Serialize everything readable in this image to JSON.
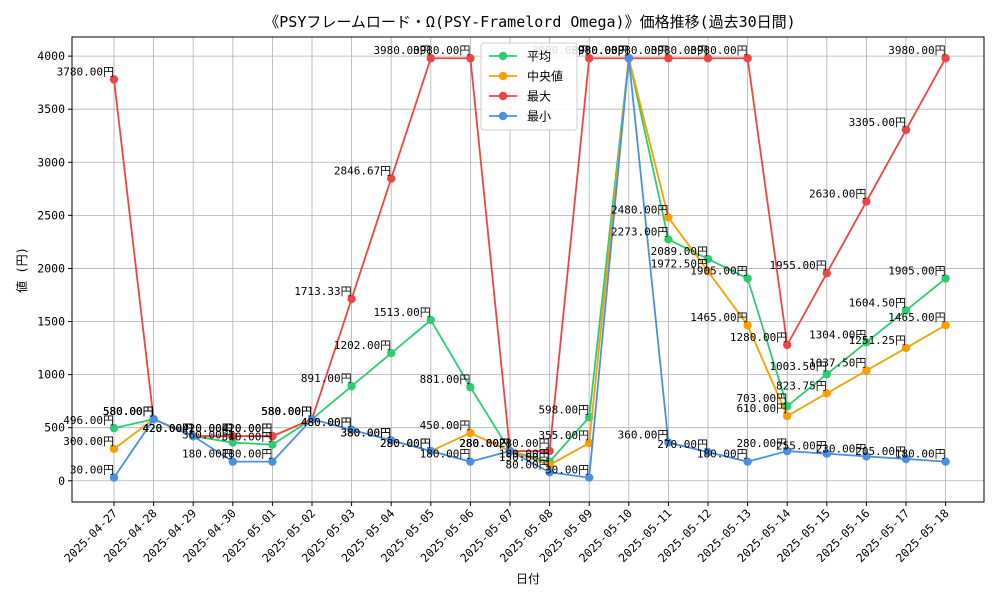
{
  "chart_data": {
    "type": "line",
    "title": "《PSYフレームロード・Ω(PSY-Framelord Omega)》価格推移(過去30日間)",
    "xlabel": "日付",
    "ylabel": "値 (円)",
    "ylim": [
      -200,
      4180
    ],
    "yticks": [
      0,
      500,
      1000,
      1500,
      2000,
      2500,
      3000,
      3500,
      4000
    ],
    "grid": true,
    "legend_position": "top-center",
    "label_suffix": "円",
    "categories": [
      "2025-04-27",
      "2025-04-28",
      "2025-04-29",
      "2025-04-30",
      "2025-05-01",
      "2025-05-02",
      "2025-05-03",
      "2025-05-04",
      "2025-05-05",
      "2025-05-06",
      "2025-05-07",
      "2025-05-08",
      "2025-05-09",
      "2025-05-10",
      "2025-05-11",
      "2025-05-12",
      "2025-05-13",
      "2025-05-14",
      "2025-05-15",
      "2025-05-16",
      "2025-05-17",
      "2025-05-18"
    ],
    "series": [
      {
        "name": "平均",
        "color": "#2ecc71",
        "values": [
          496,
          580,
          420,
          360,
          340,
          580,
          891,
          1202,
          1513,
          881,
          280,
          180,
          598,
          3980,
          2273,
          2089,
          1905,
          703,
          1003.5,
          1304,
          1604.5,
          1905
        ],
        "value_labels": [
          "496.00円",
          "580.00円",
          "420.00円",
          "360.00円",
          "340.00円",
          "580.00円",
          "891.00円",
          "1202.00円",
          "1513.00円",
          "881.00円",
          "280.00円",
          "180.00円",
          "598.00円",
          "3980.00円",
          "2273.00円",
          "2089.00円",
          "1905.00円",
          "703.00円",
          "1003.50円",
          "1304.00円",
          "1604.50円",
          "1905.00円"
        ]
      },
      {
        "name": "中央値",
        "color": "#f5a000",
        "values": [
          300,
          580,
          420,
          420,
          420,
          580,
          480,
          380,
          280,
          450,
          280,
          150,
          355,
          3980,
          2480,
          1972.5,
          1465,
          610,
          823.75,
          1037.5,
          1251.25,
          1465
        ],
        "value_labels": [
          "300.00円",
          "580.00円",
          "420.00円",
          "420.00円",
          "420.00円",
          "580.00円",
          "480.00円",
          "380.00円",
          "280.00円",
          "450.00円",
          "280.00円",
          "150.00円",
          "355.00円",
          "3980.00円",
          "2480.00円",
          "1972.50円",
          "1465.00円",
          "610.00円",
          "823.75円",
          "1037.50円",
          "1251.25円",
          "1465.00円"
        ]
      },
      {
        "name": "最大",
        "color": "#ef4444",
        "values": [
          3780,
          580,
          420,
          420,
          420,
          580,
          1713.33,
          2846.67,
          3980,
          3980,
          280,
          280,
          3980,
          3980,
          3980,
          3980,
          3980,
          1280,
          1955,
          2630,
          3305,
          3980
        ],
        "value_labels": [
          "3780.00円",
          "580.00円",
          "420.00円",
          "420.00円",
          "420.00円",
          "580.00円",
          "1713.33円",
          "2846.67円",
          "3980.00円",
          "3980.00円",
          "280.00円",
          "280.00円",
          "3980.00円",
          "3980.00円",
          "3980.00円",
          "3980.00円",
          "3980.00円",
          "1280.00円",
          "1955.00円",
          "2630.00円",
          "3305.00円",
          "3980.00円"
        ]
      },
      {
        "name": "最小",
        "color": "#4a90e2",
        "values": [
          30,
          580,
          420,
          180,
          180,
          580,
          480,
          380,
          280,
          180,
          280,
          80,
          30,
          3980,
          360,
          270,
          180,
          280,
          255,
          230,
          205,
          180
        ],
        "value_labels": [
          "30.00円",
          "580.00円",
          "420.00円",
          "180.00円",
          "180.00円",
          "580.00円",
          "480.00円",
          "380.00円",
          "280.00円",
          "180.00円",
          "280.00円",
          "80.00円",
          "30.00円",
          "3980.00円",
          "360.00円",
          "270.00円",
          "180.00円",
          "280.00円",
          "255.00円",
          "230.00円",
          "205.00円",
          "180.00円"
        ]
      }
    ]
  }
}
